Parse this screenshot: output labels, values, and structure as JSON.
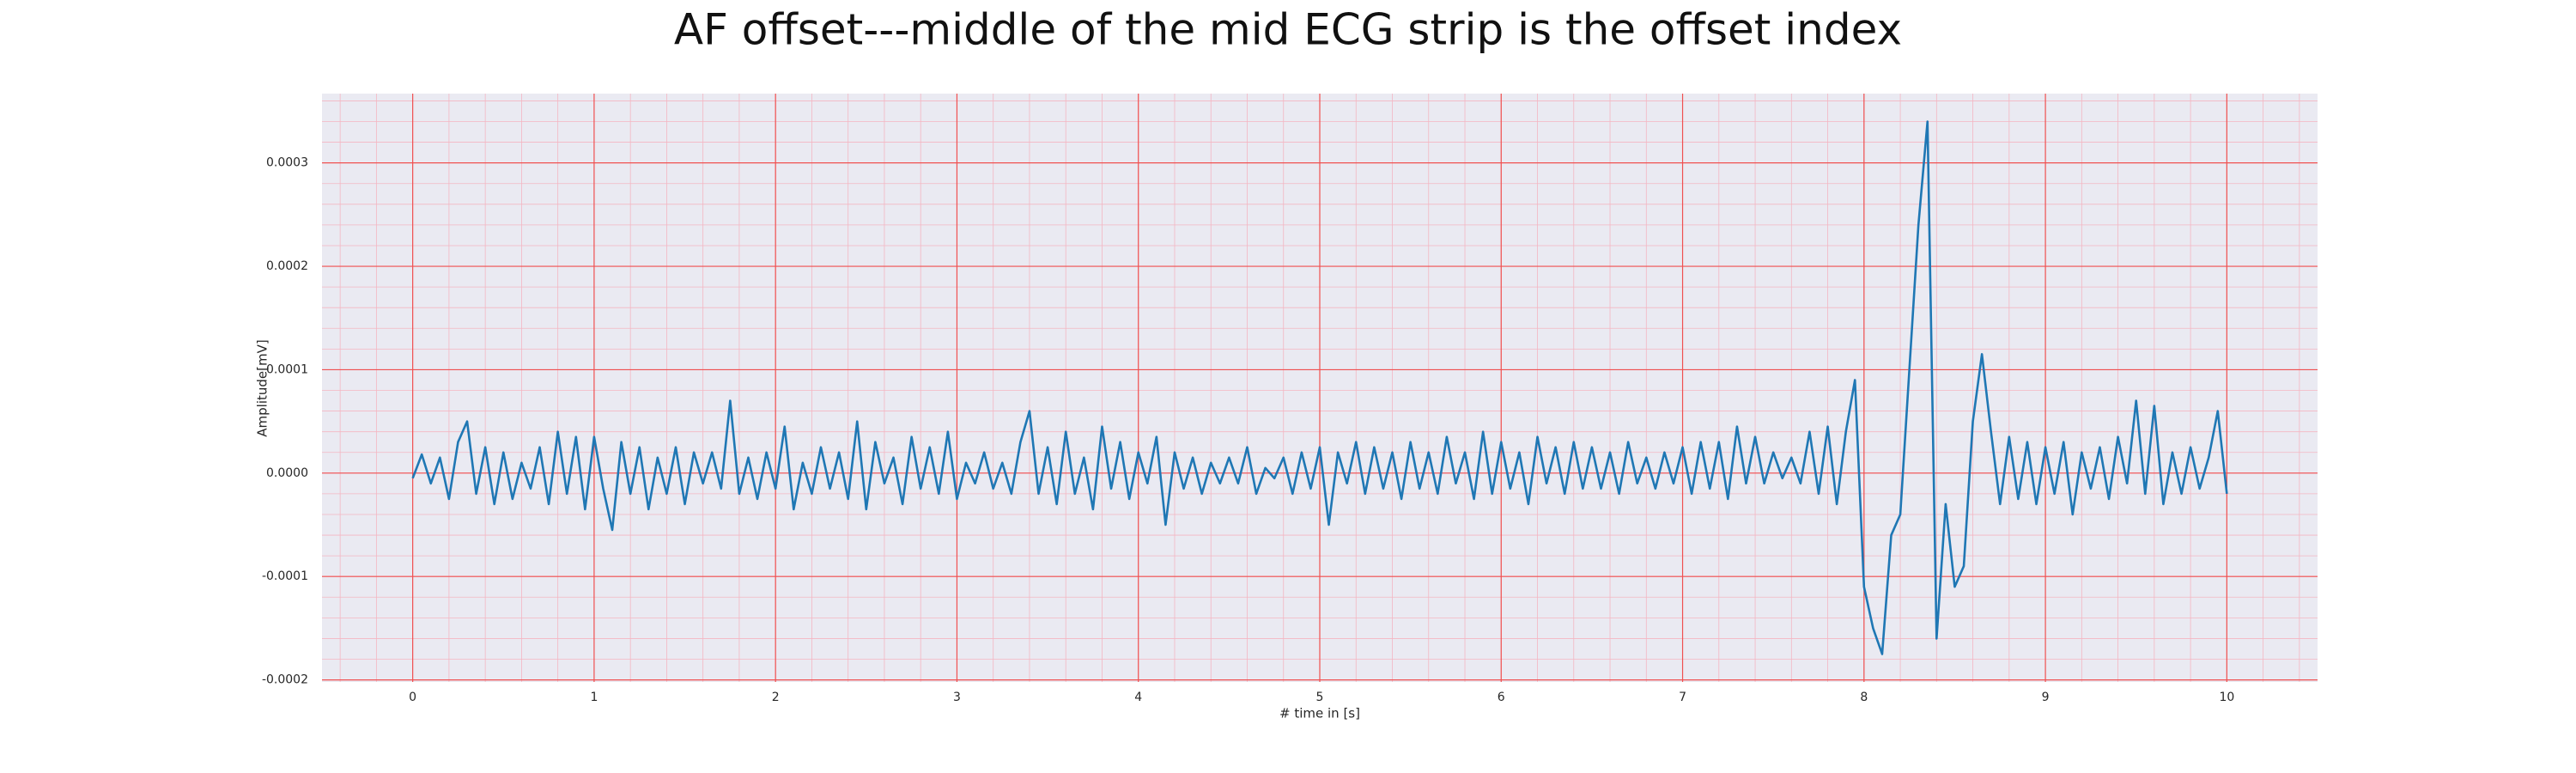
{
  "chart_data": {
    "type": "line",
    "title": "AF offset---middle of the mid ECG strip is the offset index",
    "xlabel": "# time in [s]",
    "ylabel": "Amplitude[mV]",
    "color": "#1f77b4",
    "grid": true,
    "minor_grid": true,
    "xlim": [
      -0.5,
      10.5
    ],
    "xticks": [
      0,
      1,
      2,
      3,
      4,
      5,
      6,
      7,
      8,
      9,
      10
    ],
    "ylim": [
      -0.000202,
      0.000367
    ],
    "yticks": [
      {
        "value": -0.0002,
        "label": "-0.0002"
      },
      {
        "value": -0.0001,
        "label": "-0.0001"
      },
      {
        "value": 0,
        "label": "0.0000"
      },
      {
        "value": 0.0001,
        "label": "0.0001"
      },
      {
        "value": 0.0002,
        "label": "0.0002"
      },
      {
        "value": 0.0003,
        "label": "0.0003"
      }
    ],
    "x": [
      0,
      0.05,
      0.1,
      0.15,
      0.2,
      0.25,
      0.3,
      0.35,
      0.4,
      0.45,
      0.5,
      0.55,
      0.6,
      0.65,
      0.7,
      0.75,
      0.8,
      0.85,
      0.9,
      0.95,
      1,
      1.05,
      1.1,
      1.15,
      1.2,
      1.25,
      1.3,
      1.35,
      1.4,
      1.45,
      1.5,
      1.55,
      1.6,
      1.65,
      1.7,
      1.75,
      1.8,
      1.85,
      1.9,
      1.95,
      2,
      2.05,
      2.1,
      2.15,
      2.2,
      2.25,
      2.3,
      2.35,
      2.4,
      2.45,
      2.5,
      2.55,
      2.6,
      2.65,
      2.7,
      2.75,
      2.8,
      2.85,
      2.9,
      2.95,
      3,
      3.05,
      3.1,
      3.15,
      3.2,
      3.25,
      3.3,
      3.35,
      3.4,
      3.45,
      3.5,
      3.55,
      3.6,
      3.65,
      3.7,
      3.75,
      3.8,
      3.85,
      3.9,
      3.95,
      4,
      4.05,
      4.1,
      4.15,
      4.2,
      4.25,
      4.3,
      4.35,
      4.4,
      4.45,
      4.5,
      4.55,
      4.6,
      4.65,
      4.7,
      4.75,
      4.8,
      4.85,
      4.9,
      4.95,
      5,
      5.05,
      5.1,
      5.15,
      5.2,
      5.25,
      5.3,
      5.35,
      5.4,
      5.45,
      5.5,
      5.55,
      5.6,
      5.65,
      5.7,
      5.75,
      5.8,
      5.85,
      5.9,
      5.95,
      6,
      6.05,
      6.1,
      6.15,
      6.2,
      6.25,
      6.3,
      6.35,
      6.4,
      6.45,
      6.5,
      6.55,
      6.6,
      6.65,
      6.7,
      6.75,
      6.8,
      6.85,
      6.9,
      6.95,
      7,
      7.05,
      7.1,
      7.15,
      7.2,
      7.25,
      7.3,
      7.35,
      7.4,
      7.45,
      7.5,
      7.55,
      7.6,
      7.65,
      7.7,
      7.75,
      7.8,
      7.85,
      7.9,
      7.95,
      8,
      8.05,
      8.1,
      8.15,
      8.2,
      8.25,
      8.3,
      8.35,
      8.4,
      8.45,
      8.5,
      8.55,
      8.6,
      8.65,
      8.7,
      8.75,
      8.8,
      8.85,
      8.9,
      8.95,
      9,
      9.05,
      9.1,
      9.15,
      9.2,
      9.25,
      9.3,
      9.35,
      9.4,
      9.45,
      9.5,
      9.55,
      9.6,
      9.65,
      9.7,
      9.75,
      9.8,
      9.85,
      9.9,
      9.95,
      10
    ],
    "values": [
      -5e-06,
      1.8e-05,
      -1e-05,
      1.5e-05,
      -2.5e-05,
      3e-05,
      5e-05,
      -2e-05,
      2.5e-05,
      -3e-05,
      2e-05,
      -2.5e-05,
      1e-05,
      -1.5e-05,
      2.5e-05,
      -3e-05,
      4e-05,
      -2e-05,
      3.5e-05,
      -3.5e-05,
      3.5e-05,
      -1.5e-05,
      -5.5e-05,
      3e-05,
      -2e-05,
      2.5e-05,
      -3.5e-05,
      1.5e-05,
      -2e-05,
      2.5e-05,
      -3e-05,
      2e-05,
      -1e-05,
      2e-05,
      -1.5e-05,
      7e-05,
      -2e-05,
      1.5e-05,
      -2.5e-05,
      2e-05,
      -1.5e-05,
      4.5e-05,
      -3.5e-05,
      1e-05,
      -2e-05,
      2.5e-05,
      -1.5e-05,
      2e-05,
      -2.5e-05,
      5e-05,
      -3.5e-05,
      3e-05,
      -1e-05,
      1.5e-05,
      -3e-05,
      3.5e-05,
      -1.5e-05,
      2.5e-05,
      -2e-05,
      4e-05,
      -2.5e-05,
      1e-05,
      -1e-05,
      2e-05,
      -1.5e-05,
      1e-05,
      -2e-05,
      3e-05,
      6e-05,
      -2e-05,
      2.5e-05,
      -3e-05,
      4e-05,
      -2e-05,
      1.5e-05,
      -3.5e-05,
      4.5e-05,
      -1.5e-05,
      3e-05,
      -2.5e-05,
      2e-05,
      -1e-05,
      3.5e-05,
      -5e-05,
      2e-05,
      -1.5e-05,
      1.5e-05,
      -2e-05,
      1e-05,
      -1e-05,
      1.5e-05,
      -1e-05,
      2.5e-05,
      -2e-05,
      5e-06,
      -5e-06,
      1.5e-05,
      -2e-05,
      2e-05,
      -1.5e-05,
      2.5e-05,
      -5e-05,
      2e-05,
      -1e-05,
      3e-05,
      -2e-05,
      2.5e-05,
      -1.5e-05,
      2e-05,
      -2.5e-05,
      3e-05,
      -1.5e-05,
      2e-05,
      -2e-05,
      3.5e-05,
      -1e-05,
      2e-05,
      -2.5e-05,
      4e-05,
      -2e-05,
      3e-05,
      -1.5e-05,
      2e-05,
      -3e-05,
      3.5e-05,
      -1e-05,
      2.5e-05,
      -2e-05,
      3e-05,
      -1.5e-05,
      2.5e-05,
      -1.5e-05,
      2e-05,
      -2e-05,
      3e-05,
      -1e-05,
      1.5e-05,
      -1.5e-05,
      2e-05,
      -1e-05,
      2.5e-05,
      -2e-05,
      3e-05,
      -1.5e-05,
      3e-05,
      -2.5e-05,
      4.5e-05,
      -1e-05,
      3.5e-05,
      -1e-05,
      2e-05,
      -5e-06,
      1.5e-05,
      -1e-05,
      4e-05,
      -2e-05,
      4.5e-05,
      -3e-05,
      4e-05,
      9e-05,
      -0.00011,
      -0.00015,
      -0.000175,
      -6e-05,
      -4e-05,
      0.0001,
      0.00024,
      0.00034,
      -0.00016,
      -3e-05,
      -0.00011,
      -9e-05,
      5e-05,
      0.000115,
      4e-05,
      -3e-05,
      3.5e-05,
      -2.5e-05,
      3e-05,
      -3e-05,
      2.5e-05,
      -2e-05,
      3e-05,
      -4e-05,
      2e-05,
      -1.5e-05,
      2.5e-05,
      -2.5e-05,
      3.5e-05,
      -1e-05,
      7e-05,
      -2e-05,
      6.5e-05,
      -3e-05,
      2e-05,
      -2e-05,
      2.5e-05,
      -1.5e-05,
      1.5e-05,
      6e-05,
      -2e-05
    ]
  }
}
